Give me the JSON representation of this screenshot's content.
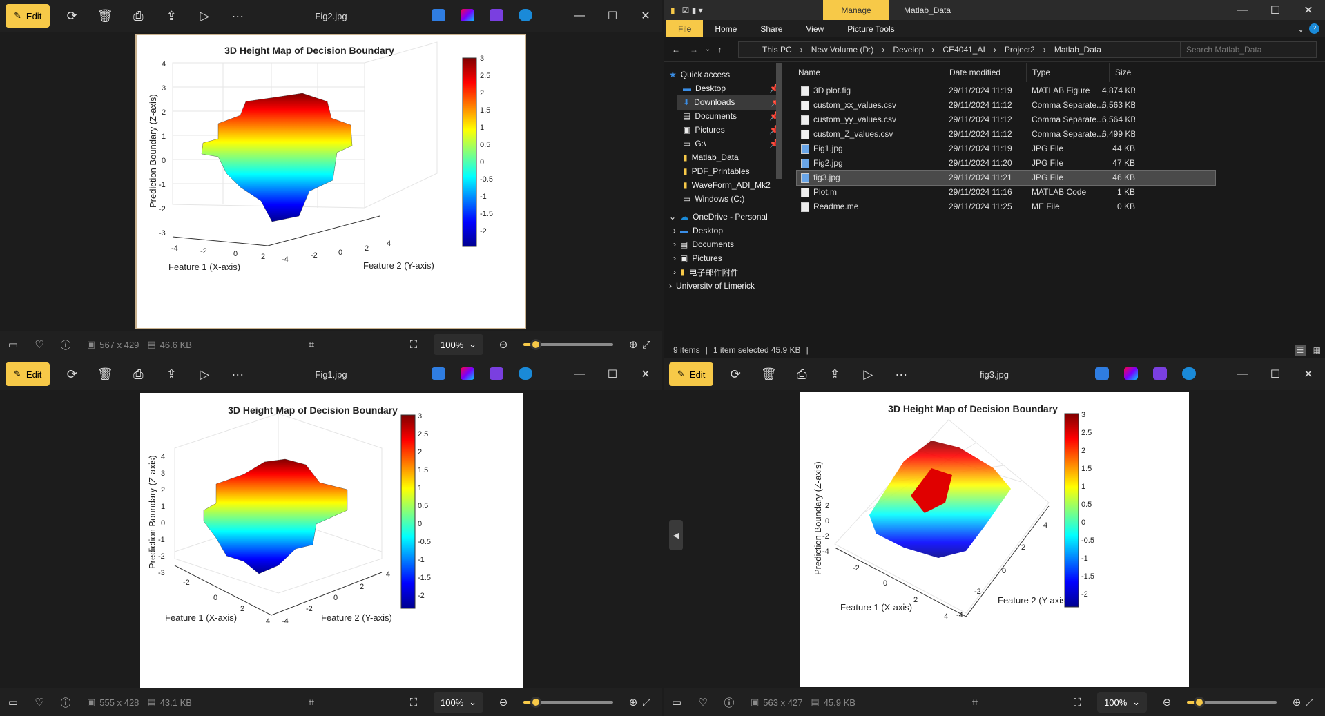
{
  "viewers": [
    {
      "title": "Fig2.jpg",
      "edit": "Edit",
      "dims": "567 x 429",
      "size": "46.6 KB",
      "zoom": "100%"
    },
    {
      "title": "Fig1.jpg",
      "edit": "Edit",
      "dims": "555 x 428",
      "size": "43.1 KB",
      "zoom": "100%"
    },
    {
      "title": "fig3.jpg",
      "edit": "Edit",
      "dims": "563 x 427",
      "size": "45.9 KB",
      "zoom": "100%"
    }
  ],
  "plot": {
    "title": "3D Height Map of Decision Boundary",
    "xlabel": "Feature 1 (X-axis)",
    "ylabel": "Feature 2 (Y-axis)",
    "zlabel": "Prediction Boundary (Z-axis)"
  },
  "chart_data": {
    "type": "heatmap",
    "title": "3D Height Map of Decision Boundary",
    "xlabel": "Feature 1 (X-axis)",
    "ylabel": "Feature 2 (Y-axis)",
    "zlabel": "Prediction Boundary (Z-axis)",
    "xlim": [
      -4,
      4
    ],
    "ylim": [
      -4,
      4
    ],
    "zlim": [
      -3,
      4
    ],
    "x_ticks": [
      "-4",
      "-2",
      "0",
      "2",
      "4"
    ],
    "y_ticks": [
      "-4",
      "-2",
      "0",
      "2",
      "4"
    ],
    "z_ticks": [
      "4",
      "3",
      "2",
      "1",
      "0",
      "-1",
      "-2",
      "-3"
    ],
    "colorbar_ticks": [
      "3",
      "2.5",
      "2",
      "1.5",
      "1",
      "0.5",
      "0",
      "-0.5",
      "-1",
      "-1.5",
      "-2"
    ],
    "colormap": "jet",
    "colorbar_range": [
      -2.4,
      3
    ]
  },
  "explorer": {
    "title": "Matlab_Data",
    "manage": "Manage",
    "tabs": [
      "File",
      "Home",
      "Share",
      "View",
      "Picture Tools"
    ],
    "path": [
      "This PC",
      "New Volume (D:)",
      "Develop",
      "CE4041_AI",
      "Project2",
      "Matlab_Data"
    ],
    "search_placeholder": "Search Matlab_Data",
    "columns": [
      "Name",
      "Date modified",
      "Type",
      "Size"
    ],
    "files": [
      {
        "name": "3D plot.fig",
        "date": "29/11/2024 11:19",
        "type": "MATLAB Figure",
        "size": "4,874 KB"
      },
      {
        "name": "custom_xx_values.csv",
        "date": "29/11/2024 11:12",
        "type": "Comma Separate...",
        "size": "6,563 KB"
      },
      {
        "name": "custom_yy_values.csv",
        "date": "29/11/2024 11:12",
        "type": "Comma Separate...",
        "size": "6,564 KB"
      },
      {
        "name": "custom_Z_values.csv",
        "date": "29/11/2024 11:12",
        "type": "Comma Separate...",
        "size": "6,499 KB"
      },
      {
        "name": "Fig1.jpg",
        "date": "29/11/2024 11:19",
        "type": "JPG File",
        "size": "44 KB"
      },
      {
        "name": "Fig2.jpg",
        "date": "29/11/2024 11:20",
        "type": "JPG File",
        "size": "47 KB"
      },
      {
        "name": "fig3.jpg",
        "date": "29/11/2024 11:21",
        "type": "JPG File",
        "size": "46 KB"
      },
      {
        "name": "Plot.m",
        "date": "29/11/2024 11:16",
        "type": "MATLAB Code",
        "size": "1 KB"
      },
      {
        "name": "Readme.me",
        "date": "29/11/2024 11:25",
        "type": "ME File",
        "size": "0 KB"
      }
    ],
    "nav": [
      "Quick access",
      "Desktop",
      "Downloads",
      "Documents",
      "Pictures",
      "G:\\",
      "Matlab_Data",
      "PDF_Printables",
      "WaveForm_ADI_Mk2",
      "Windows (C:)",
      "OneDrive - Personal",
      "Desktop",
      "Documents",
      "Pictures",
      "电子邮件附件",
      "University of Limerick"
    ],
    "status_items": "9 items",
    "status_selected": "1 item selected  45.9 KB"
  }
}
